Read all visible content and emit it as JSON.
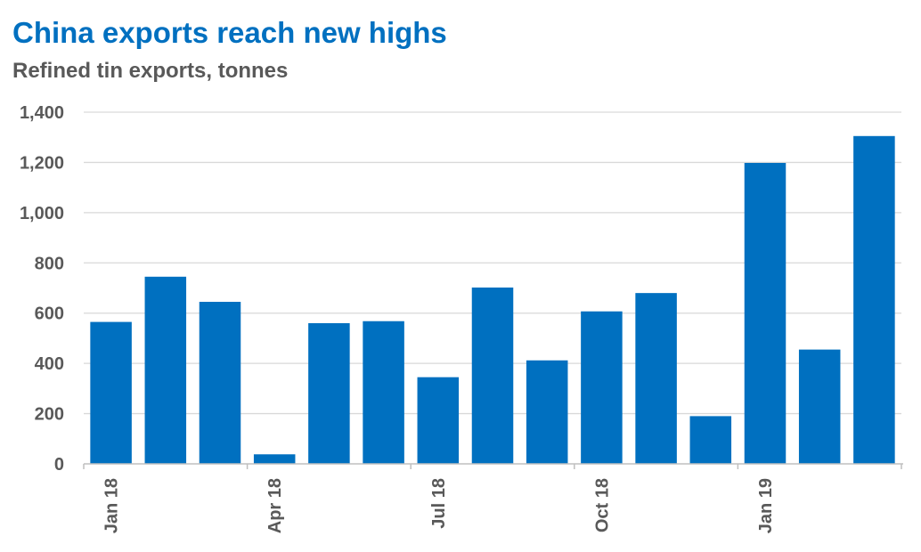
{
  "header": {
    "title": "China exports reach new highs",
    "subtitle": "Refined tin exports, tonnes"
  },
  "chart_data": {
    "type": "bar",
    "title": "China exports reach new highs",
    "subtitle": "Refined tin exports, tonnes",
    "xlabel": "",
    "ylabel": "",
    "categories": [
      "Jan 18",
      "Feb 18",
      "Mar 18",
      "Apr 18",
      "May 18",
      "Jun 18",
      "Jul 18",
      "Aug 18",
      "Sep 18",
      "Oct 18",
      "Nov 18",
      "Dec 18",
      "Jan 19",
      "Feb 19",
      "Mar 19"
    ],
    "x_tick_labels": [
      "Jan 18",
      "Apr 18",
      "Jul 18",
      "Oct 18",
      "Jan 19"
    ],
    "values": [
      565,
      745,
      645,
      38,
      560,
      568,
      345,
      702,
      412,
      607,
      680,
      190,
      1198,
      455,
      1305
    ],
    "y_ticks": [
      "0",
      "200",
      "400",
      "600",
      "800",
      "1,000",
      "1,200",
      "1,400"
    ],
    "ylim": [
      0,
      1400
    ],
    "grid": true,
    "legend": "none",
    "colors": {
      "bar": "#0070c0",
      "title": "#0070c0",
      "text": "#595959",
      "grid": "#d9d9d9",
      "axis": "#bfbfbf"
    }
  }
}
